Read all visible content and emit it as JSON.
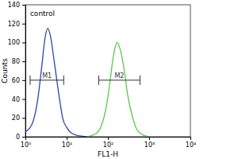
{
  "chart_data": {
    "type": "line",
    "log": "x",
    "xlabel": "FL1-H",
    "ylabel": "Counts",
    "xlim": [
      1,
      10000
    ],
    "ylim": [
      0,
      140
    ],
    "xticks": [
      {
        "value": 1,
        "label": "10⁰"
      },
      {
        "value": 10,
        "label": "10¹"
      },
      {
        "value": 100,
        "label": "10²"
      },
      {
        "value": 1000,
        "label": "10³"
      },
      {
        "value": 10000,
        "label": "10⁴"
      }
    ],
    "yticks": [
      0,
      20,
      40,
      60,
      80,
      100,
      120,
      140
    ],
    "series": [
      {
        "color": "#2f45b0",
        "x": [
          1,
          1.5,
          2,
          2.5,
          3,
          3.5,
          4,
          5,
          6,
          7,
          8,
          10,
          13,
          20,
          40
        ],
        "values": [
          5,
          15,
          40,
          75,
          105,
          115,
          108,
          80,
          55,
          35,
          20,
          10,
          4,
          1,
          0
        ]
      },
      {
        "color": "#5cc84a",
        "x": [
          30,
          50,
          70,
          90,
          110,
          130,
          150,
          170,
          200,
          250,
          300,
          400,
          500,
          700,
          1000
        ],
        "values": [
          0,
          3,
          12,
          30,
          55,
          80,
          95,
          100,
          92,
          70,
          45,
          20,
          8,
          2,
          0
        ]
      }
    ],
    "markers": [
      {
        "label": "M1",
        "x": [
          1.3,
          8.5
        ],
        "y": 60
      },
      {
        "label": "M2",
        "x": [
          60,
          600
        ],
        "y": 60
      }
    ],
    "annotations": [
      {
        "text": "control",
        "x": 1.3,
        "y": 128
      }
    ]
  }
}
